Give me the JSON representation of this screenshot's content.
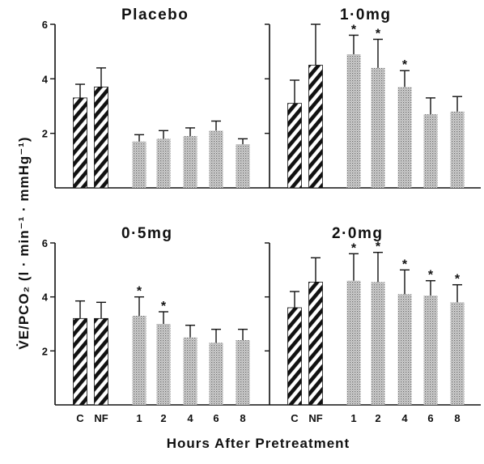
{
  "figure": {
    "xlabel": "Hours  After  Pretreatment",
    "ylabel": "V̇E/PCO₂  (l · min⁻¹ · mmHg⁻¹)"
  },
  "chart_data": [
    {
      "type": "bar",
      "title": "Placebo",
      "categories": [
        "C",
        "NF",
        "1",
        "2",
        "4",
        "6",
        "8"
      ],
      "values": [
        3.3,
        3.7,
        1.7,
        1.8,
        1.9,
        2.1,
        1.6
      ],
      "errors": [
        0.5,
        0.7,
        0.25,
        0.3,
        0.3,
        0.35,
        0.2
      ],
      "significant": [
        false,
        false,
        false,
        false,
        false,
        false,
        false
      ],
      "ylim": [
        0,
        6
      ],
      "yticks": [
        2,
        4,
        6
      ],
      "show_xticklabels": false,
      "show_yticklabels": true
    },
    {
      "type": "bar",
      "title": "1·0mg",
      "categories": [
        "C",
        "NF",
        "1",
        "2",
        "4",
        "6",
        "8"
      ],
      "values": [
        3.1,
        4.5,
        4.9,
        4.4,
        3.7,
        2.7,
        2.8
      ],
      "errors": [
        0.85,
        1.5,
        0.7,
        1.05,
        0.6,
        0.6,
        0.55
      ],
      "significant": [
        false,
        false,
        true,
        true,
        true,
        false,
        false
      ],
      "ylim": [
        0,
        6
      ],
      "yticks": [
        2,
        4,
        6
      ],
      "show_xticklabels": false,
      "show_yticklabels": false
    },
    {
      "type": "bar",
      "title": "0·5mg",
      "categories": [
        "C",
        "NF",
        "1",
        "2",
        "4",
        "6",
        "8"
      ],
      "values": [
        3.2,
        3.2,
        3.3,
        3.0,
        2.5,
        2.3,
        2.4
      ],
      "errors": [
        0.65,
        0.6,
        0.7,
        0.45,
        0.45,
        0.5,
        0.4
      ],
      "significant": [
        false,
        false,
        true,
        true,
        false,
        false,
        false
      ],
      "ylim": [
        0,
        6
      ],
      "yticks": [
        2,
        4,
        6
      ],
      "show_xticklabels": true,
      "show_yticklabels": true
    },
    {
      "type": "bar",
      "title": "2·0mg",
      "categories": [
        "C",
        "NF",
        "1",
        "2",
        "4",
        "6",
        "8"
      ],
      "values": [
        3.6,
        4.55,
        4.6,
        4.55,
        4.1,
        4.05,
        3.8
      ],
      "errors": [
        0.6,
        0.9,
        1.0,
        1.1,
        0.9,
        0.55,
        0.65
      ],
      "significant": [
        false,
        false,
        true,
        true,
        true,
        true,
        true
      ],
      "ylim": [
        0,
        6
      ],
      "yticks": [
        2,
        4,
        6
      ],
      "show_xticklabels": true,
      "show_yticklabels": false
    }
  ]
}
